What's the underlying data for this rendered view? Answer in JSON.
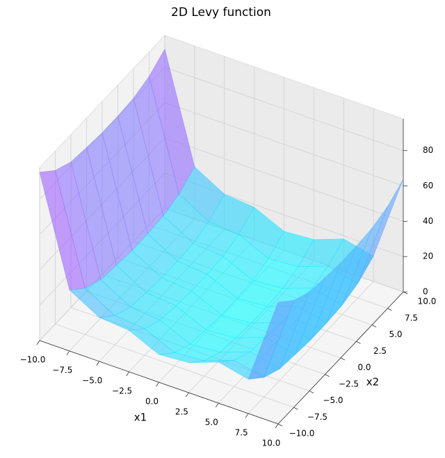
{
  "chart_data": {
    "type": "surface3d",
    "title": "2D Levy function",
    "x_label": "x1",
    "y_label": "x2",
    "x": [
      -10,
      -7.5,
      -5,
      -2.5,
      0,
      2.5,
      5,
      7.5,
      10
    ],
    "y": [
      -10,
      -7.5,
      -5,
      -2.5,
      0,
      2.5,
      5,
      7.5,
      10
    ],
    "z": [
      [
        95.3,
        34.5,
        24.9,
        23.4,
        15.7,
        17.0,
        23.2,
        19.4,
        68.9
      ],
      [
        87.0,
        26.2,
        16.6,
        15.1,
        7.4,
        8.7,
        14.9,
        11.1,
        60.6
      ],
      [
        82.5,
        21.7,
        12.1,
        10.6,
        2.9,
        4.2,
        10.4,
        6.6,
        56.1
      ],
      [
        81.3,
        20.5,
        10.9,
        9.4,
        1.7,
        3.0,
        9.2,
        5.4,
        54.9
      ],
      [
        80.3,
        19.5,
        9.9,
        8.4,
        0.7,
        2.0,
        8.2,
        4.4,
        53.9
      ],
      [
        80.4,
        19.6,
        10.0,
        8.5,
        0.8,
        2.1,
        8.3,
        4.5,
        54.0
      ],
      [
        81.2,
        20.4,
        10.8,
        9.3,
        1.6,
        2.9,
        9.1,
        5.3,
        54.8
      ],
      [
        84.2,
        23.4,
        13.8,
        12.3,
        4.6,
        5.9,
        12.1,
        8.3,
        57.8
      ],
      [
        90.3,
        29.5,
        19.9,
        18.4,
        10.7,
        12.0,
        18.2,
        14.4,
        63.9
      ]
    ],
    "xlim": [
      -10,
      10
    ],
    "ylim": [
      -10,
      10
    ],
    "zlim": [
      0,
      98
    ],
    "xticks": [
      {
        "value": -10,
        "label": "−10.0"
      },
      {
        "value": -7.5,
        "label": "−7.5"
      },
      {
        "value": -5,
        "label": "−5.0"
      },
      {
        "value": -2.5,
        "label": "−2.5"
      },
      {
        "value": 0,
        "label": "0.0"
      },
      {
        "value": 2.5,
        "label": "2.5"
      },
      {
        "value": 5,
        "label": "5.0"
      },
      {
        "value": 7.5,
        "label": "7.5"
      },
      {
        "value": 10,
        "label": "10.0"
      }
    ],
    "yticks": [
      {
        "value": -10,
        "label": "−10.0"
      },
      {
        "value": -7.5,
        "label": "−7.5"
      },
      {
        "value": -5,
        "label": "−5.0"
      },
      {
        "value": -2.5,
        "label": "−2.5"
      },
      {
        "value": 0,
        "label": "0.0"
      },
      {
        "value": 2.5,
        "label": "2.5"
      },
      {
        "value": 5,
        "label": "5.0"
      },
      {
        "value": 7.5,
        "label": "7.5"
      },
      {
        "value": 10,
        "label": "10.0"
      }
    ],
    "zticks": [
      0,
      20,
      40,
      60,
      80
    ],
    "colormap": [
      "#00ffff",
      "#ff00ff"
    ],
    "alpha": 0.6,
    "grid": true
  }
}
